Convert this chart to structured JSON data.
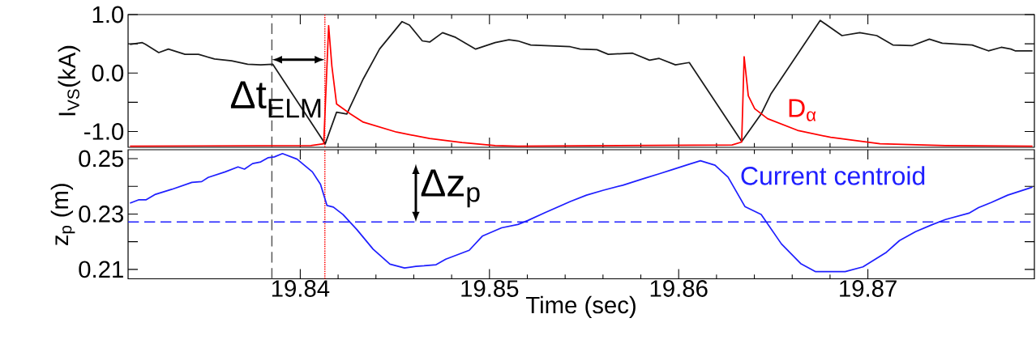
{
  "chart_data": [
    {
      "type": "line",
      "ylabel": "I$_{VS}$(kA)",
      "tick_labels": "y",
      "xlim": [
        19.8309,
        19.8788
      ],
      "ylim": [
        -1.27,
        1.0
      ],
      "xticks": [
        19.84,
        19.85,
        19.86,
        19.87
      ],
      "yticks": [
        {
          "value": -1.0,
          "label": "-1.0"
        },
        {
          "value": -0.5,
          "label": null
        },
        {
          "value": 0.0,
          "label": "0.0"
        },
        {
          "value": 0.5,
          "label": null
        },
        {
          "value": 1.0,
          "label": "1.0"
        }
      ],
      "series": [
        {
          "color": "#1a1a1a",
          "x": [
            19.831,
            19.83165,
            19.83182,
            19.83252,
            19.83303,
            19.83391,
            19.83462,
            19.83547,
            19.83637,
            19.83722,
            19.83791,
            19.83855,
            19.84132,
            19.84192,
            19.84246,
            19.84333,
            19.84419,
            19.84538,
            19.84577,
            19.84645,
            19.84684,
            19.84752,
            19.84821,
            19.84927,
            19.8503,
            19.85103,
            19.8515,
            19.85218,
            19.85427,
            19.85479,
            19.85568,
            19.85628,
            19.85756,
            19.85846,
            19.85897,
            19.85983,
            19.86056,
            19.86333,
            19.86436,
            19.86487,
            19.86748,
            19.86863,
            19.86957,
            19.87047,
            19.87132,
            19.87235,
            19.87325,
            19.87393,
            19.87551,
            19.87637,
            19.87705,
            19.87756,
            19.87778,
            19.8787
          ],
          "values": [
            0.49,
            0.52,
            0.49,
            0.35,
            0.41,
            0.32,
            0.32,
            0.24,
            0.21,
            0.15,
            0.14,
            0.15,
            -1.21,
            -0.67,
            -0.7,
            -0.1,
            0.41,
            0.88,
            0.82,
            0.55,
            0.53,
            0.69,
            0.61,
            0.41,
            0.52,
            0.57,
            0.55,
            0.48,
            0.45,
            0.41,
            0.4,
            0.32,
            0.34,
            0.22,
            0.25,
            0.14,
            0.18,
            -1.17,
            -0.7,
            -0.36,
            0.9,
            0.64,
            0.69,
            0.64,
            0.48,
            0.47,
            0.58,
            0.51,
            0.48,
            0.38,
            0.44,
            0.41,
            0.38,
            0.38
          ]
        },
        {
          "name": "D$_{α}$",
          "color": "#ff0000",
          "x": [
            19.831,
            19.84056,
            19.84124,
            19.8415,
            19.84167,
            19.84192,
            19.84265,
            19.84333,
            19.84509,
            19.84684,
            19.84855,
            19.8503,
            19.8515,
            19.86282,
            19.86333,
            19.86346,
            19.86368,
            19.86402,
            19.8647,
            19.86628,
            19.86803,
            19.87064,
            19.8741,
            19.8787
          ],
          "values": [
            -1.25,
            -1.24,
            -1.21,
            0.81,
            0.12,
            -0.53,
            -0.7,
            -0.84,
            -1.01,
            -1.12,
            -1.19,
            -1.24,
            -1.25,
            -1.23,
            -1.18,
            0.28,
            -0.39,
            -0.61,
            -0.78,
            -0.98,
            -1.1,
            -1.21,
            -1.24,
            -1.25
          ]
        }
      ],
      "ref_lines": [
        {
          "axis": "x",
          "value": 19.8385,
          "color": "#555555",
          "line_style": "dashed"
        },
        {
          "axis": "x",
          "value": 19.8413,
          "color": "#ff0000",
          "line_style": "dotted"
        }
      ],
      "annotations": [
        "Δt$_{ELM}$"
      ]
    },
    {
      "type": "line",
      "ylabel": "z$_{p}$ (m)",
      "xlabel": "Time (sec)",
      "xlim": [
        19.8309,
        19.8788
      ],
      "ylim": [
        0.2066,
        0.2532
      ],
      "xticks": [
        19.84,
        19.85,
        19.86,
        19.87
      ],
      "yticks": [
        0.21,
        {
          "value": 0.22,
          "label": null
        },
        0.23,
        {
          "value": 0.24,
          "label": null
        },
        0.25
      ],
      "series": [
        {
          "name": "Current centroid",
          "color": "#1f1fff",
          "x": [
            19.831,
            19.83145,
            19.83184,
            19.83235,
            19.83321,
            19.83427,
            19.83479,
            19.83513,
            19.83603,
            19.83671,
            19.83705,
            19.83748,
            19.83791,
            19.83829,
            19.83863,
            19.83906,
            19.83983,
            19.84064,
            19.84107,
            19.84141,
            19.84175,
            19.84226,
            19.84299,
            19.84385,
            19.84474,
            19.84551,
            19.84611,
            19.84654,
            19.84718,
            19.84769,
            19.84893,
            19.84962,
            19.85064,
            19.8515,
            19.85201,
            19.85291,
            19.85427,
            19.85513,
            19.85603,
            19.85705,
            19.85812,
            19.85897,
            19.85966,
            19.86056,
            19.86115,
            19.86192,
            19.86261,
            19.8635,
            19.86436,
            19.86543,
            19.86645,
            19.86722,
            19.86803,
            19.8688,
            19.86974,
            19.87098,
            19.87167,
            19.87252,
            19.87342,
            19.8741,
            19.87534,
            19.87585,
            19.87654,
            19.87739,
            19.8787
          ],
          "values": [
            0.2339,
            0.2351,
            0.2351,
            0.2371,
            0.2389,
            0.2414,
            0.2417,
            0.2432,
            0.2452,
            0.247,
            0.2462,
            0.2482,
            0.2488,
            0.2503,
            0.2506,
            0.2518,
            0.2498,
            0.2452,
            0.2407,
            0.2331,
            0.2325,
            0.2298,
            0.2244,
            0.2173,
            0.2119,
            0.2105,
            0.2111,
            0.2113,
            0.2117,
            0.2137,
            0.2169,
            0.222,
            0.225,
            0.2262,
            0.2276,
            0.2304,
            0.2345,
            0.2368,
            0.2386,
            0.2404,
            0.2427,
            0.2445,
            0.246,
            0.248,
            0.2492,
            0.2476,
            0.2433,
            0.2327,
            0.2298,
            0.2192,
            0.2121,
            0.2092,
            0.2092,
            0.2092,
            0.2109,
            0.2162,
            0.2204,
            0.2236,
            0.2262,
            0.228,
            0.2303,
            0.2323,
            0.2342,
            0.2368,
            0.2397
          ]
        }
      ],
      "ref_lines": [
        {
          "axis": "x",
          "value": 19.8385,
          "color": "#555555",
          "line_style": "dashed"
        },
        {
          "axis": "x",
          "value": 19.8413,
          "color": "#ff0000",
          "line_style": "dotted"
        },
        {
          "axis": "y",
          "value": 0.2271,
          "color": "#1f1fff",
          "line_style": "dashed"
        }
      ],
      "annotations": [
        "Δz$_{p}$"
      ]
    }
  ]
}
